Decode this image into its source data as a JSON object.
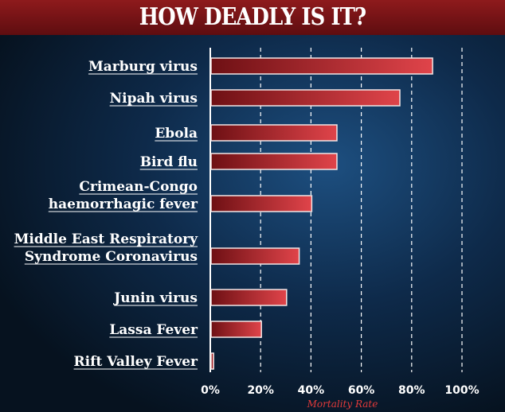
{
  "chart_data": {
    "type": "bar",
    "orientation": "horizontal",
    "title": "HOW DEADLY IS IT?",
    "xlabel": "Mortality Rate",
    "ylabel": "",
    "categories": [
      [
        "Marburg virus"
      ],
      [
        "Nipah virus"
      ],
      [
        "Ebola"
      ],
      [
        "Bird flu"
      ],
      [
        "Crimean-Congo",
        "haemorrhagic fever"
      ],
      [
        "Middle East Respiratory",
        "Syndrome Coronavirus"
      ],
      [
        "Junin virus"
      ],
      [
        "Lassa Fever"
      ],
      [
        "Rift Valley Fever"
      ]
    ],
    "values": [
      88,
      75,
      50,
      50,
      40,
      35,
      30,
      20,
      1
    ],
    "unit": "%",
    "xlim": [
      0,
      100
    ],
    "xticks": [
      "0%",
      "20%",
      "40%",
      "60%",
      "80%",
      "100%"
    ],
    "grid": "vertical dashed",
    "colors": {
      "bar": "#d63a3c",
      "bar_dark": "#6e1014",
      "banner": "#7a1517",
      "background": "#0e2a4a"
    }
  }
}
